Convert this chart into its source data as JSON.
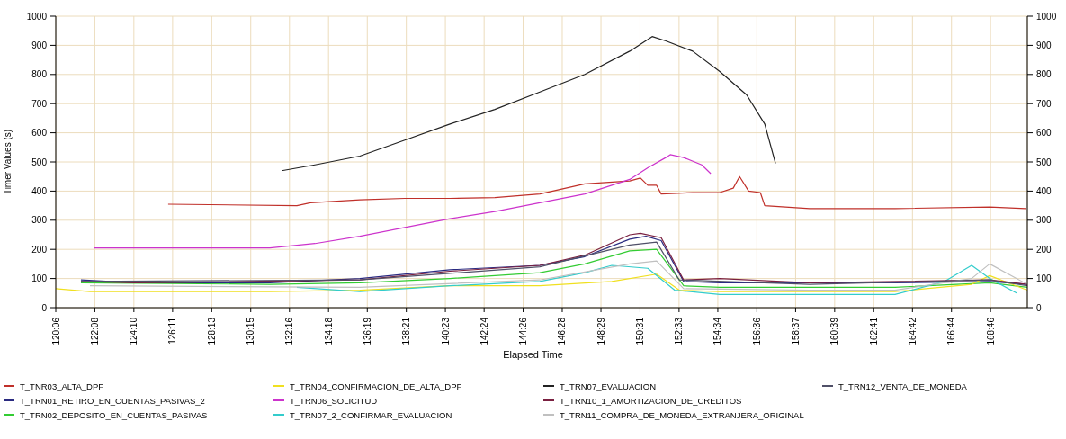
{
  "chart_data": {
    "type": "line",
    "xlabel": "Elapsed Time",
    "ylabel": "Timer Values (s)",
    "xlim": [
      120.1,
      170.68
    ],
    "ylim": [
      0,
      1000
    ],
    "y2lim": [
      0,
      1000
    ],
    "xticks": [
      {
        "value": 120.1,
        "label": "120:06"
      },
      {
        "value": 122.133,
        "label": "122:08"
      },
      {
        "value": 124.167,
        "label": "124:10"
      },
      {
        "value": 126.183,
        "label": "126:11"
      },
      {
        "value": 128.217,
        "label": "128:13"
      },
      {
        "value": 130.25,
        "label": "130:15"
      },
      {
        "value": 132.267,
        "label": "132:16"
      },
      {
        "value": 134.3,
        "label": "134:18"
      },
      {
        "value": 136.317,
        "label": "136:19"
      },
      {
        "value": 138.35,
        "label": "138:21"
      },
      {
        "value": 140.383,
        "label": "140:23"
      },
      {
        "value": 142.4,
        "label": "142:24"
      },
      {
        "value": 144.433,
        "label": "144:26"
      },
      {
        "value": 146.467,
        "label": "146:28"
      },
      {
        "value": 148.483,
        "label": "148:29"
      },
      {
        "value": 150.517,
        "label": "150:31"
      },
      {
        "value": 152.55,
        "label": "152:33"
      },
      {
        "value": 154.567,
        "label": "154:34"
      },
      {
        "value": 156.6,
        "label": "156:36"
      },
      {
        "value": 158.617,
        "label": "158:37"
      },
      {
        "value": 160.65,
        "label": "160:39"
      },
      {
        "value": 162.683,
        "label": "162:41"
      },
      {
        "value": 164.7,
        "label": "164:42"
      },
      {
        "value": 166.733,
        "label": "166:44"
      },
      {
        "value": 168.767,
        "label": "168:46"
      }
    ],
    "yticks": [
      0,
      100,
      200,
      300,
      400,
      500,
      600,
      700,
      800,
      900,
      1000
    ],
    "y2ticks": [
      0,
      100,
      200,
      300,
      400,
      500,
      600,
      700,
      800,
      900,
      1000
    ],
    "grid": true,
    "legend": "bottom",
    "marker": "none",
    "line_style": "solid",
    "series": [
      {
        "name": "T_TNR03_ALTA_DPF",
        "color": "#c0302a",
        "x": [
          125.95,
          132.65,
          133.36,
          135.93,
          138.27,
          140.62,
          142.96,
          145.3,
          147.64,
          149.98,
          150.54,
          150.92,
          151.38,
          151.62,
          153.26,
          154.67,
          155.37,
          155.7,
          156.17,
          156.78,
          157.01,
          159.35,
          163.79,
          168.72,
          170.59
        ],
        "values": [
          355,
          350,
          360,
          370,
          375,
          375,
          378,
          390,
          425,
          435,
          445,
          420,
          420,
          390,
          395,
          395,
          410,
          450,
          400,
          395,
          350,
          340,
          340,
          345,
          340
        ]
      },
      {
        "name": "T_TRN01_RETIRO_EN_CUENTAS_PASIVAS_2",
        "color": "#2a2a80",
        "x": [
          121.41,
          124.22,
          131.25,
          135.93,
          140.62,
          145.3,
          147.64,
          149.98,
          150.83,
          151.62,
          152.79,
          154.67,
          159.35,
          163.79,
          168.72,
          170.68
        ],
        "values": [
          95,
          85,
          85,
          100,
          130,
          145,
          175,
          235,
          245,
          230,
          90,
          85,
          85,
          85,
          90,
          80
        ]
      },
      {
        "name": "T_TRN02_DEPOSITO_EN_CUENTAS_PASIVAS",
        "color": "#33cc33",
        "x": [
          121.41,
          131.25,
          135.93,
          140.62,
          145.3,
          147.64,
          149.98,
          151.38,
          152.79,
          154.67,
          159.35,
          163.79,
          168.72,
          170.68
        ],
        "values": [
          85,
          80,
          85,
          100,
          120,
          150,
          195,
          200,
          75,
          70,
          70,
          70,
          85,
          70
        ]
      },
      {
        "name": "T_TRN04_CONFIRMACION_DE_ALTA_DPF",
        "color": "#f0e020",
        "x": [
          120.1,
          121.88,
          131.25,
          135.93,
          140.62,
          145.3,
          149.05,
          151.38,
          152.56,
          154.67,
          159.35,
          163.79,
          167.78,
          168.72,
          170.68
        ],
        "values": [
          65,
          55,
          55,
          60,
          75,
          75,
          90,
          115,
          60,
          55,
          55,
          55,
          80,
          110,
          60
        ]
      },
      {
        "name": "T_TRN06_SOLICITUD",
        "color": "#cc33cc",
        "x": [
          122.11,
          126.56,
          131.25,
          133.59,
          135.93,
          138.27,
          140.62,
          142.96,
          145.3,
          147.64,
          149.05,
          149.98,
          150.92,
          151.86,
          152.09,
          152.79,
          153.73,
          154.2
        ],
        "values": [
          205,
          205,
          205,
          220,
          245,
          275,
          305,
          330,
          360,
          390,
          420,
          440,
          480,
          515,
          525,
          515,
          490,
          460
        ]
      },
      {
        "name": "T_TRN07_2_CONFIRMAR_EVALUACION",
        "color": "#33cccc",
        "x": [
          132.65,
          135.93,
          140.62,
          145.3,
          147.64,
          149.05,
          150.92,
          152.32,
          154.67,
          159.35,
          163.79,
          166.38,
          167.78,
          168.72,
          170.12
        ],
        "values": [
          70,
          55,
          75,
          90,
          120,
          145,
          135,
          60,
          45,
          45,
          45,
          90,
          145,
          100,
          50
        ]
      },
      {
        "name": "T_TRN07_EVALUACION",
        "color": "#222222",
        "x": [
          131.86,
          133.59,
          135.93,
          138.27,
          140.62,
          142.96,
          145.3,
          147.64,
          149.98,
          151.15,
          151.86,
          153.26,
          154.67,
          156.07,
          157.01,
          157.57
        ],
        "values": [
          470,
          490,
          520,
          575,
          630,
          680,
          740,
          800,
          880,
          930,
          915,
          880,
          810,
          730,
          630,
          495
        ]
      },
      {
        "name": "T_TRN10_1_AMORTIZACION_DE_CREDITOS",
        "color": "#7a2040",
        "x": [
          121.41,
          124.22,
          135.93,
          140.62,
          145.3,
          147.64,
          149.98,
          150.54,
          151.62,
          152.79,
          154.67,
          159.35,
          168.72,
          170.68
        ],
        "values": [
          90,
          85,
          95,
          125,
          145,
          180,
          250,
          255,
          240,
          95,
          100,
          85,
          95,
          80
        ]
      },
      {
        "name": "T_TRN11_COMPRA_DE_MONEDA_EXTRANJERA_ORIGINAL",
        "color": "#c0c0c0",
        "x": [
          121.88,
          135.93,
          145.3,
          149.98,
          151.38,
          152.79,
          159.35,
          163.79,
          167.78,
          168.72,
          170.68
        ],
        "values": [
          75,
          70,
          95,
          150,
          160,
          65,
          60,
          60,
          100,
          150,
          80
        ]
      },
      {
        "name": "T_TRN12_VENTA_DE_MONEDA",
        "color": "#505068",
        "x": [
          121.41,
          135.93,
          145.3,
          149.98,
          151.38,
          152.56,
          159.35,
          168.72,
          170.68
        ],
        "values": [
          90,
          95,
          140,
          215,
          225,
          95,
          80,
          95,
          75
        ]
      }
    ]
  }
}
